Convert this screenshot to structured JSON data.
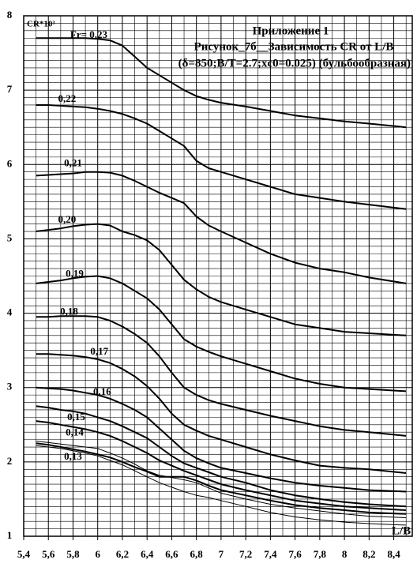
{
  "chart_data": {
    "type": "line",
    "title": "Приложение 1",
    "subtitle": "Рисунок_7б__Зависимость CR от L/B",
    "annotation": "(δ=850;B/T=2.7;xc0=0.025) (бульбообразная)",
    "y_label": "CR*10³",
    "x_label": "L/B",
    "x": [
      5.5,
      5.6,
      5.7,
      5.8,
      5.9,
      6.0,
      6.1,
      6.2,
      6.3,
      6.4,
      6.5,
      6.6,
      6.7,
      6.8,
      6.9,
      7.0,
      7.2,
      7.4,
      7.6,
      7.8,
      8.0,
      8.2,
      8.5
    ],
    "series": [
      {
        "name": "Fr= 0,23",
        "color": "#000000",
        "values": [
          7.7,
          7.7,
          7.7,
          7.7,
          7.7,
          7.69,
          7.67,
          7.6,
          7.45,
          7.3,
          7.2,
          7.1,
          7.0,
          6.92,
          6.87,
          6.83,
          6.78,
          6.72,
          6.66,
          6.62,
          6.58,
          6.55,
          6.5
        ]
      },
      {
        "name": "0,22",
        "color": "#000000",
        "values": [
          6.8,
          6.8,
          6.79,
          6.78,
          6.77,
          6.75,
          6.72,
          6.68,
          6.62,
          6.55,
          6.45,
          6.35,
          6.25,
          6.05,
          5.95,
          5.9,
          5.8,
          5.7,
          5.6,
          5.55,
          5.5,
          5.46,
          5.4
        ]
      },
      {
        "name": "0,21",
        "color": "#000000",
        "values": [
          5.85,
          5.86,
          5.87,
          5.88,
          5.9,
          5.9,
          5.89,
          5.85,
          5.78,
          5.7,
          5.62,
          5.55,
          5.48,
          5.3,
          5.18,
          5.1,
          4.95,
          4.8,
          4.68,
          4.6,
          4.55,
          4.48,
          4.4
        ]
      },
      {
        "name": "0,20",
        "color": "#000000",
        "values": [
          5.1,
          5.12,
          5.14,
          5.17,
          5.19,
          5.2,
          5.18,
          5.1,
          5.05,
          4.98,
          4.85,
          4.65,
          4.45,
          4.32,
          4.22,
          4.15,
          4.05,
          3.95,
          3.85,
          3.8,
          3.75,
          3.73,
          3.7
        ]
      },
      {
        "name": "0,19",
        "color": "#000000",
        "values": [
          4.4,
          4.42,
          4.44,
          4.47,
          4.49,
          4.5,
          4.47,
          4.4,
          4.3,
          4.2,
          4.05,
          3.85,
          3.65,
          3.55,
          3.48,
          3.42,
          3.32,
          3.22,
          3.12,
          3.05,
          3.0,
          2.98,
          2.95
        ]
      },
      {
        "name": "0,18",
        "color": "#000000",
        "values": [
          3.95,
          3.95,
          3.96,
          3.96,
          3.96,
          3.95,
          3.9,
          3.82,
          3.72,
          3.6,
          3.42,
          3.2,
          3.0,
          2.9,
          2.83,
          2.78,
          2.7,
          2.62,
          2.55,
          2.48,
          2.43,
          2.4,
          2.35
        ]
      },
      {
        "name": "0,17",
        "color": "#000000",
        "values": [
          3.45,
          3.45,
          3.44,
          3.43,
          3.41,
          3.38,
          3.33,
          3.25,
          3.15,
          3.02,
          2.85,
          2.65,
          2.5,
          2.42,
          2.35,
          2.3,
          2.2,
          2.1,
          2.02,
          1.95,
          1.92,
          1.9,
          1.85
        ]
      },
      {
        "name": "0,16",
        "color": "#000000",
        "values": [
          3.0,
          2.99,
          2.98,
          2.96,
          2.93,
          2.9,
          2.85,
          2.78,
          2.7,
          2.6,
          2.45,
          2.3,
          2.15,
          2.05,
          1.98,
          1.92,
          1.85,
          1.78,
          1.72,
          1.68,
          1.65,
          1.62,
          1.6
        ]
      },
      {
        "name": "0,15",
        "color": "#000000",
        "values": [
          2.75,
          2.73,
          2.7,
          2.68,
          2.65,
          2.6,
          2.55,
          2.48,
          2.4,
          2.32,
          2.2,
          2.08,
          1.98,
          1.92,
          1.86,
          1.8,
          1.72,
          1.62,
          1.55,
          1.5,
          1.46,
          1.43,
          1.4
        ]
      },
      {
        "name": "0,14",
        "color": "#000000",
        "values": [
          2.55,
          2.53,
          2.5,
          2.47,
          2.44,
          2.4,
          2.35,
          2.28,
          2.2,
          2.12,
          2.02,
          1.95,
          1.88,
          1.82,
          1.76,
          1.7,
          1.62,
          1.55,
          1.48,
          1.44,
          1.4,
          1.38,
          1.35
        ]
      },
      {
        "name": "0,13",
        "color": "#000000",
        "values": [
          2.25,
          2.23,
          2.2,
          2.17,
          2.14,
          2.1,
          2.06,
          2.0,
          1.93,
          1.87,
          1.8,
          1.8,
          1.8,
          1.75,
          1.68,
          1.62,
          1.55,
          1.48,
          1.42,
          1.38,
          1.35,
          1.32,
          1.3
        ]
      },
      {
        "color": "#000000",
        "values": [
          2.28,
          2.26,
          2.24,
          2.22,
          2.2,
          2.18,
          2.12,
          2.05,
          1.97,
          1.88,
          1.82,
          1.79,
          1.76,
          1.72,
          1.65,
          1.58,
          1.5,
          1.43,
          1.38,
          1.34,
          1.3,
          1.27,
          1.25
        ]
      },
      {
        "color": "#000000",
        "values": [
          2.22,
          2.2,
          2.18,
          2.15,
          2.12,
          2.08,
          2.02,
          1.96,
          1.88,
          1.8,
          1.72,
          1.66,
          1.6,
          1.55,
          1.52,
          1.48,
          1.4,
          1.32,
          1.26,
          1.22,
          1.19,
          1.17,
          1.15
        ]
      }
    ],
    "xlim": [
      5.4,
      8.55
    ],
    "xticks": [
      {
        "value": 5.4,
        "label": "5,4"
      },
      {
        "value": 5.6,
        "label": "5,6"
      },
      {
        "value": 5.8,
        "label": "5,8"
      },
      6,
      {
        "value": 6.2,
        "label": "6,2"
      },
      {
        "value": 6.4,
        "label": "6,4"
      },
      {
        "value": 6.6,
        "label": "6,6"
      },
      {
        "value": 6.8,
        "label": "6,8"
      },
      7,
      {
        "value": 7.2,
        "label": "7,2"
      },
      {
        "value": 7.4,
        "label": "7,4"
      },
      {
        "value": 7.6,
        "label": "7,6"
      },
      {
        "value": 7.8,
        "label": "7,8"
      },
      8,
      {
        "value": 8.2,
        "label": "8,2"
      },
      {
        "value": 8.4,
        "label": "8,4"
      }
    ],
    "ylim": [
      1,
      8
    ],
    "yticks": [
      1,
      2,
      3,
      4,
      5,
      6,
      7,
      8
    ],
    "grid": true
  }
}
